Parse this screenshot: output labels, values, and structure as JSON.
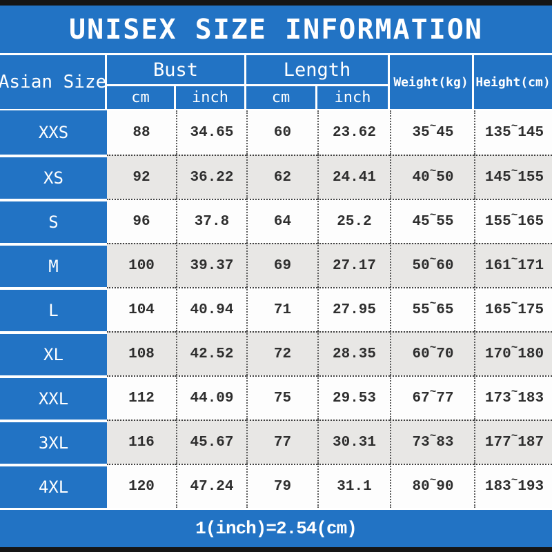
{
  "title": "UNISEX SIZE INFORMATION",
  "columns": {
    "size": "Asian Size",
    "bust": "Bust",
    "length": "Length",
    "unit_cm": "cm",
    "unit_inch": "inch",
    "weight": "Weight(kg)",
    "height": "Height(cm)",
    "range_separator": "~"
  },
  "rows": [
    {
      "size": "XXS",
      "bust_cm": "88",
      "bust_inch": "34.65",
      "len_cm": "60",
      "len_inch": "23.62",
      "weight_min": "35",
      "weight_max": "45",
      "height_min": "135",
      "height_max": "145"
    },
    {
      "size": "XS",
      "bust_cm": "92",
      "bust_inch": "36.22",
      "len_cm": "62",
      "len_inch": "24.41",
      "weight_min": "40",
      "weight_max": "50",
      "height_min": "145",
      "height_max": "155"
    },
    {
      "size": "S",
      "bust_cm": "96",
      "bust_inch": "37.8",
      "len_cm": "64",
      "len_inch": "25.2",
      "weight_min": "45",
      "weight_max": "55",
      "height_min": "155",
      "height_max": "165"
    },
    {
      "size": "M",
      "bust_cm": "100",
      "bust_inch": "39.37",
      "len_cm": "69",
      "len_inch": "27.17",
      "weight_min": "50",
      "weight_max": "60",
      "height_min": "161",
      "height_max": "171"
    },
    {
      "size": "L",
      "bust_cm": "104",
      "bust_inch": "40.94",
      "len_cm": "71",
      "len_inch": "27.95",
      "weight_min": "55",
      "weight_max": "65",
      "height_min": "165",
      "height_max": "175"
    },
    {
      "size": "XL",
      "bust_cm": "108",
      "bust_inch": "42.52",
      "len_cm": "72",
      "len_inch": "28.35",
      "weight_min": "60",
      "weight_max": "70",
      "height_min": "170",
      "height_max": "180"
    },
    {
      "size": "XXL",
      "bust_cm": "112",
      "bust_inch": "44.09",
      "len_cm": "75",
      "len_inch": "29.53",
      "weight_min": "67",
      "weight_max": "77",
      "height_min": "173",
      "height_max": "183"
    },
    {
      "size": "3XL",
      "bust_cm": "116",
      "bust_inch": "45.67",
      "len_cm": "77",
      "len_inch": "30.31",
      "weight_min": "73",
      "weight_max": "83",
      "height_min": "177",
      "height_max": "187"
    },
    {
      "size": "4XL",
      "bust_cm": "120",
      "bust_inch": "47.24",
      "len_cm": "79",
      "len_inch": "31.1",
      "weight_min": "80",
      "weight_max": "90",
      "height_min": "183",
      "height_max": "193"
    }
  ],
  "footer": "1(inch)=2.54(cm)",
  "colors": {
    "blue": "#2273C4",
    "alt_row": "#E8E7E5",
    "white_row": "#FDFDFD",
    "text_dark": "#2E2E2E",
    "bar_black": "#151515"
  }
}
